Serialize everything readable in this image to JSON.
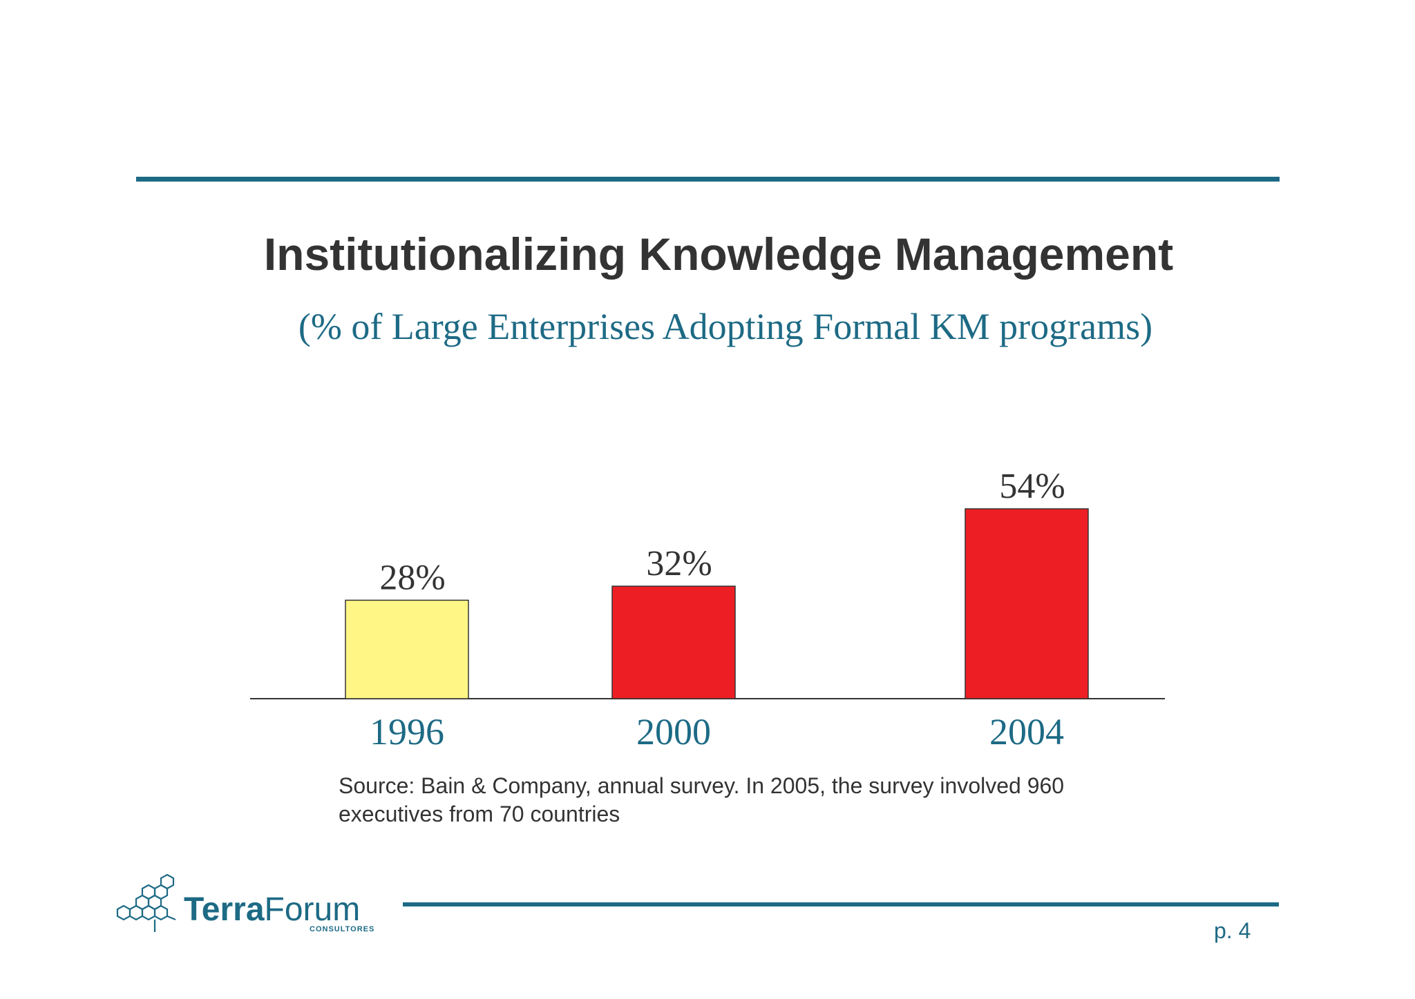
{
  "title": "Institutionalizing Knowledge Management",
  "subtitle": "(% of Large Enterprises Adopting Formal KM programs)",
  "source": {
    "line1": "Source: Bain & Company, annual survey. In 2005, the survey involved 960",
    "line2": "executives from 70 countries"
  },
  "page_number": "p. 4",
  "logo": {
    "bold": "Terra",
    "regular": "Forum",
    "sub": "CONSULTORES"
  },
  "colors": {
    "accent": "#1d6a85",
    "bar_highlight": "#fff685",
    "bar": "#ed1f24",
    "text": "#333333"
  },
  "chart_data": {
    "type": "bar",
    "categories": [
      "1996",
      "2000",
      "2004"
    ],
    "values": [
      28,
      32,
      54
    ],
    "labels": [
      "28%",
      "32%",
      "54%"
    ],
    "bar_colors": [
      "#fff685",
      "#ed1f24",
      "#ed1f24"
    ],
    "title": "Institutionalizing Knowledge Management",
    "subtitle": "(% of Large Enterprises Adopting Formal KM programs)",
    "xlabel": "",
    "ylabel": "",
    "ylim": [
      0,
      54
    ],
    "grid": false,
    "legend": "none"
  }
}
